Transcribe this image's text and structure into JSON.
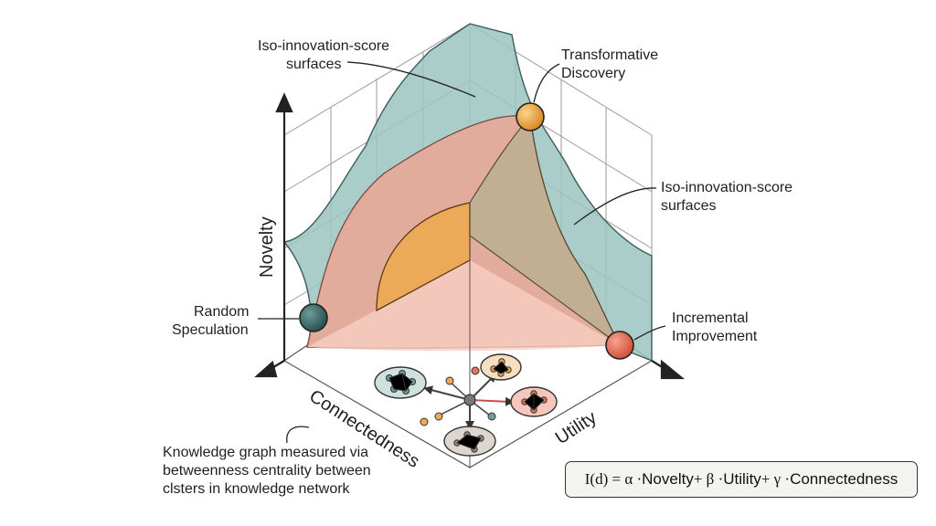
{
  "axes": {
    "novelty": "Novelty",
    "connectedness": "Connectedness",
    "utility": "Utility"
  },
  "labels": {
    "iso_surfaces_top": [
      "Iso-innovation-score",
      "surfaces"
    ],
    "transformative": [
      "Transformative",
      "Discovery"
    ],
    "iso_surfaces_right": [
      "Iso-innovation-score",
      "surfaces"
    ],
    "random": [
      "Random",
      "Speculation"
    ],
    "incremental": [
      "Incremental",
      "Improvement"
    ],
    "knowledge_note": [
      "Knowledge graph measured via",
      "betweenness centrality between",
      "clsters in knowledge network"
    ]
  },
  "formula": {
    "lhs": "I(d) = α · ",
    "t1": "Novelty",
    "p1": " + β · ",
    "t2": "Utility",
    "p2": " + γ · ",
    "t3": "Connectedness"
  },
  "colors": {
    "teal_surface": "#9cc4c1",
    "salmon_surface": "#e9a796",
    "orange_surface": "#ecaa55",
    "floor": "#f7cfc3",
    "transformative_node": "#eaa340",
    "random_node": "#3e6b6b",
    "incremental_node": "#e8735d"
  },
  "icons": [
    "arrow-up-icon",
    "arrow-left-icon",
    "arrow-right-icon",
    "network-cluster-icon"
  ]
}
